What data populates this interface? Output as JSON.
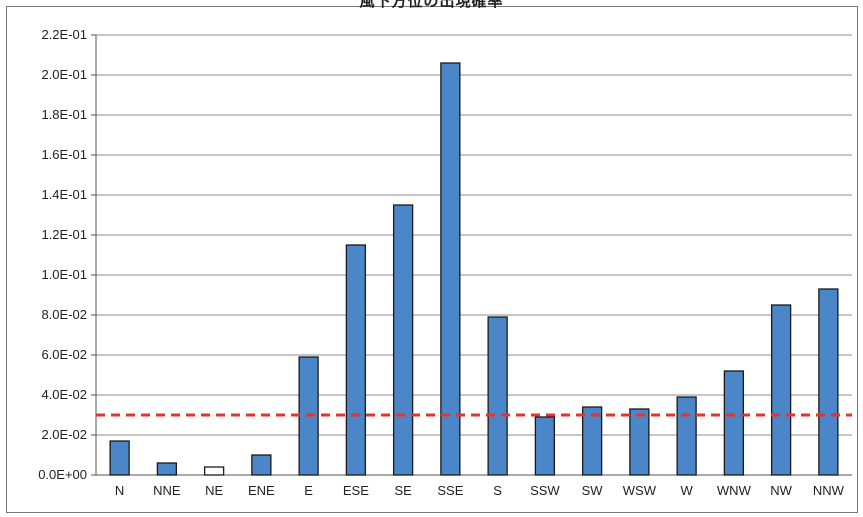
{
  "chart_data": {
    "type": "bar",
    "title": "風下方位の出現確率",
    "categories": [
      "N",
      "NNE",
      "NE",
      "ENE",
      "E",
      "ESE",
      "SE",
      "SSE",
      "S",
      "SSW",
      "SW",
      "WSW",
      "W",
      "WNW",
      "NW",
      "NNW"
    ],
    "values": [
      0.017,
      0.006,
      0.004,
      0.01,
      0.059,
      0.115,
      0.135,
      0.206,
      0.079,
      0.029,
      0.034,
      0.033,
      0.039,
      0.052,
      0.085,
      0.093
    ],
    "bar_colors": [
      "#4a86c8",
      "#4a86c8",
      "#ffffff",
      "#4a86c8",
      "#4a86c8",
      "#4a86c8",
      "#4a86c8",
      "#4a86c8",
      "#4a86c8",
      "#4a86c8",
      "#4a86c8",
      "#4a86c8",
      "#4a86c8",
      "#4a86c8",
      "#4a86c8",
      "#4a86c8"
    ],
    "ylim": [
      0,
      0.22
    ],
    "yticks": [
      0,
      0.02,
      0.04,
      0.06,
      0.08,
      0.1,
      0.12,
      0.14,
      0.16,
      0.18,
      0.2,
      0.22
    ],
    "ytick_labels": [
      "0.0E+00",
      "2.0E-02",
      "4.0E-02",
      "6.0E-02",
      "8.0E-02",
      "1.0E-01",
      "1.2E-01",
      "1.4E-01",
      "1.6E-01",
      "1.8E-01",
      "2.0E-01",
      "2.2E-01"
    ],
    "reference_line": {
      "value": 0.03,
      "color": "#e8332a",
      "style": "dashed"
    },
    "grid": true,
    "xlabel": "",
    "ylabel": ""
  }
}
